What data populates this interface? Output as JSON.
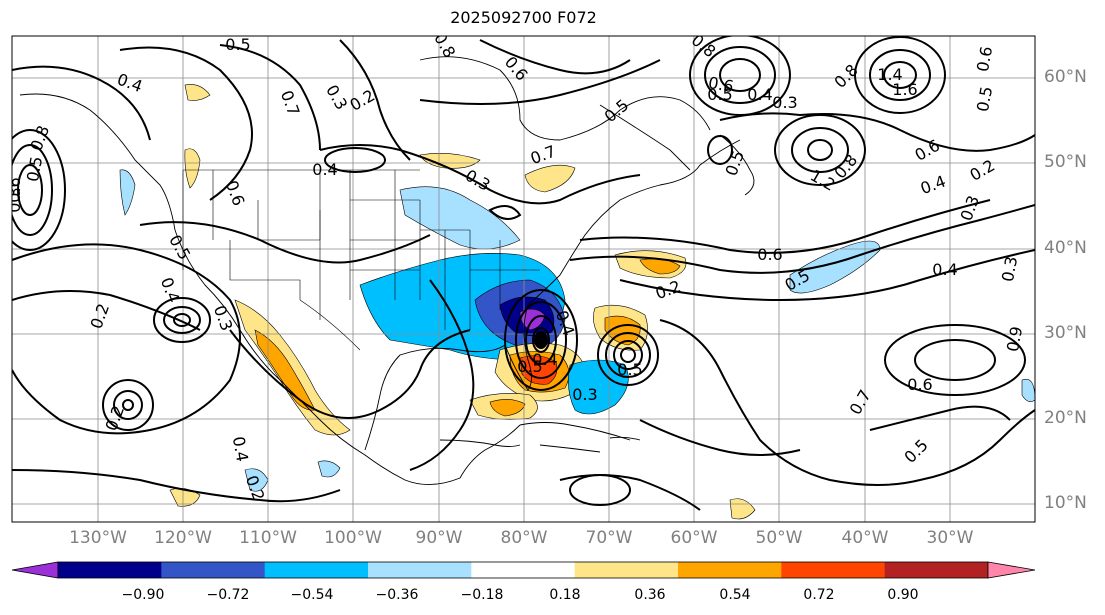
{
  "title": "2025092700 F072",
  "lat_labels": [
    "60°N",
    "50°N",
    "40°N",
    "30°N",
    "20°N",
    "10°N"
  ],
  "lon_labels": [
    "130°W",
    "120°W",
    "110°W",
    "100°W",
    "90°W",
    "80°W",
    "70°W",
    "60°W",
    "50°W",
    "40°W",
    "30°W"
  ],
  "colorbar": {
    "ticks": [
      "−0.90",
      "−0.72",
      "−0.54",
      "−0.36",
      "−0.18",
      "0.18",
      "0.36",
      "0.54",
      "0.72",
      "0.90"
    ],
    "colors": [
      "#9b30d8",
      "#00008b",
      "#3455c8",
      "#00bfff",
      "#a8e0ff",
      "#ffffff",
      "#ffe58a",
      "#ffa500",
      "#ff4500",
      "#b22222",
      "#ff85ab"
    ]
  },
  "contour_labels": [
    "0.5",
    "0.4",
    "0.3",
    "0.2",
    "0.7",
    "0.8",
    "0.6",
    "0.5",
    "0.4",
    "0.3",
    "0.6",
    "0.5",
    "0.4",
    "0.3",
    "0.2",
    "0.5",
    "0.6",
    "0.8",
    "0.7",
    "0.6",
    "0.5",
    "0.4",
    "0.3",
    "1.4",
    "1.6",
    "0.8",
    "1.2",
    "0.8",
    "0.6",
    "0.5",
    "0.4",
    "0.3",
    "0.2",
    "0.6",
    "0.5",
    "0.4",
    "0.3",
    "0.2",
    "0.4",
    "0.5",
    "0.3",
    "0.4",
    "0.5",
    "0.6",
    "0.7",
    "0.5",
    "0.4",
    "0.2",
    "0.2",
    "0.3",
    "0.5",
    "0.8",
    "0.6",
    "0.9"
  ],
  "features": {
    "map_frame": "map-frame",
    "coastline": "coastline",
    "state_borders": "state-borders",
    "contours": "contour-lines",
    "shading": "shaded-anomaly",
    "gridlines": "gridlines"
  }
}
